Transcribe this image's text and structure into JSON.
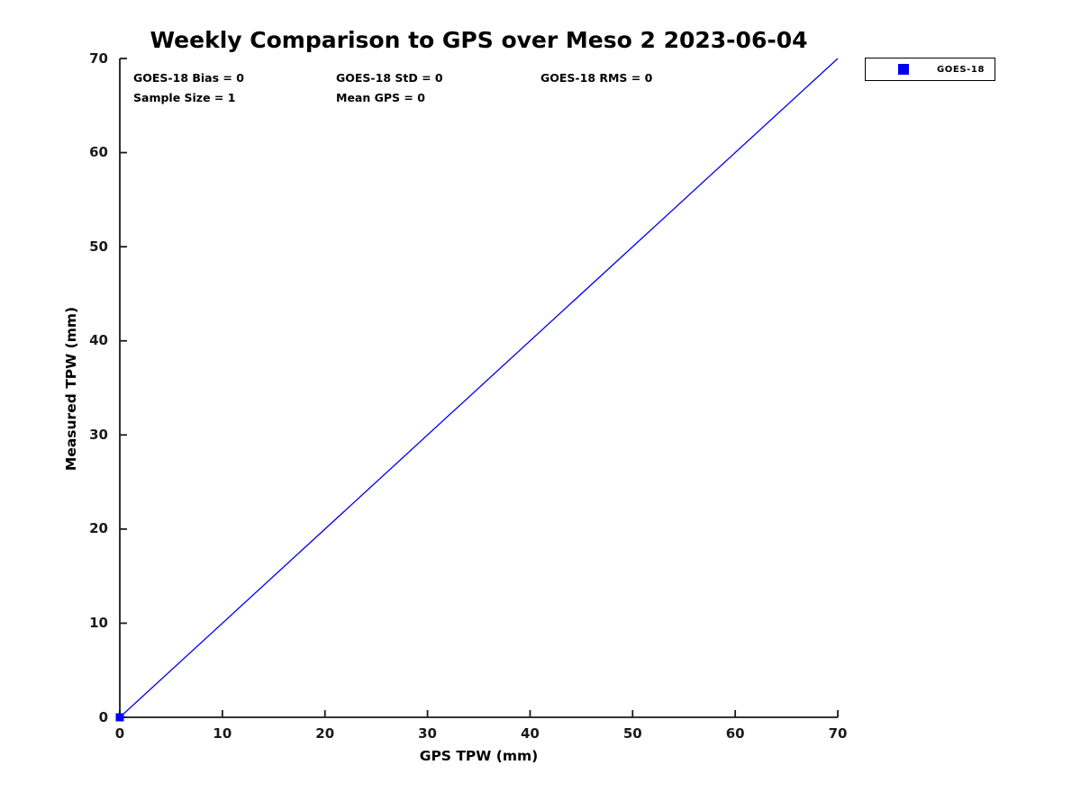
{
  "figure": {
    "title": "Weekly Comparison to GPS over Meso 2 2023-06-04",
    "background": "#ffffff"
  },
  "stats": {
    "bias": "GOES-18 Bias = 0",
    "std": "GOES-18 StD = 0",
    "rms": "GOES-18 RMS = 0",
    "sample_size": "Sample Size = 1",
    "mean_gps": "Mean GPS = 0"
  },
  "legend": {
    "position": "top-right-outside",
    "entries": [
      {
        "label": "GOES-18",
        "marker": "square",
        "color": "#0000ee"
      }
    ]
  },
  "chart_data": {
    "type": "scatter",
    "title": "Weekly Comparison to GPS over Meso 2 2023-06-04",
    "xlabel": "GPS TPW (mm)",
    "ylabel": "Measured TPW (mm)",
    "xlim": [
      0,
      70
    ],
    "ylim": [
      0,
      70
    ],
    "xticks": [
      0,
      10,
      20,
      30,
      40,
      50,
      60,
      70
    ],
    "yticks": [
      0,
      10,
      20,
      30,
      40,
      50,
      60,
      70
    ],
    "grid": false,
    "axis_color": "#1a1a1a",
    "series": [
      {
        "name": "one-to-one-line",
        "type": "line",
        "color": "#0000ee",
        "width": 1.3,
        "x": [
          0,
          70
        ],
        "y": [
          0,
          70
        ]
      },
      {
        "name": "GOES-18",
        "type": "scatter",
        "marker": "square",
        "marker_size": 9,
        "color": "#0000ff",
        "points": [
          [
            0,
            0
          ]
        ]
      }
    ],
    "annotations": [
      "GOES-18 Bias = 0",
      "GOES-18 StD = 0",
      "GOES-18 RMS = 0",
      "Sample Size = 1",
      "Mean GPS = 0"
    ]
  }
}
